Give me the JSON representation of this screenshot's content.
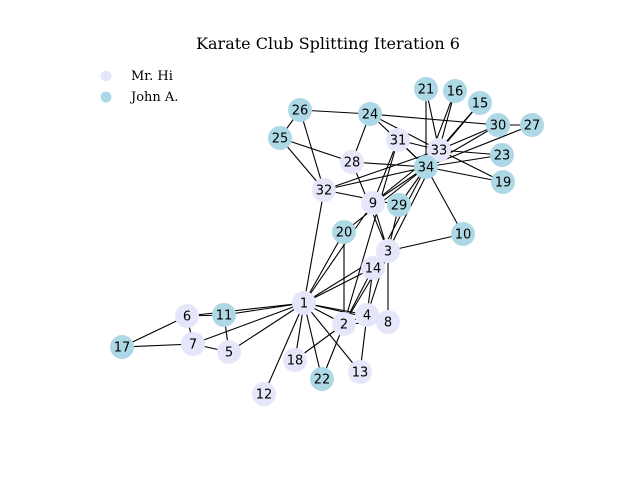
{
  "title": "Karate Club Splitting Iteration 6",
  "colors": {
    "mr_hi": "#e6e6fa",
    "john_a": "#add8e6",
    "edge": "#000000"
  },
  "legend": [
    {
      "label": "Mr. Hi",
      "group": "mr_hi"
    },
    {
      "label": "John A.",
      "group": "john_a"
    }
  ],
  "nodes": [
    {
      "id": "1",
      "group": "mr_hi"
    },
    {
      "id": "2",
      "group": "mr_hi"
    },
    {
      "id": "3",
      "group": "mr_hi"
    },
    {
      "id": "4",
      "group": "mr_hi"
    },
    {
      "id": "5",
      "group": "mr_hi"
    },
    {
      "id": "6",
      "group": "mr_hi"
    },
    {
      "id": "7",
      "group": "mr_hi"
    },
    {
      "id": "8",
      "group": "mr_hi"
    },
    {
      "id": "9",
      "group": "mr_hi"
    },
    {
      "id": "10",
      "group": "john_a"
    },
    {
      "id": "11",
      "group": "john_a"
    },
    {
      "id": "12",
      "group": "mr_hi"
    },
    {
      "id": "13",
      "group": "mr_hi"
    },
    {
      "id": "14",
      "group": "mr_hi"
    },
    {
      "id": "15",
      "group": "john_a"
    },
    {
      "id": "16",
      "group": "john_a"
    },
    {
      "id": "17",
      "group": "john_a"
    },
    {
      "id": "18",
      "group": "mr_hi"
    },
    {
      "id": "19",
      "group": "john_a"
    },
    {
      "id": "20",
      "group": "john_a"
    },
    {
      "id": "21",
      "group": "john_a"
    },
    {
      "id": "22",
      "group": "john_a"
    },
    {
      "id": "23",
      "group": "john_a"
    },
    {
      "id": "24",
      "group": "john_a"
    },
    {
      "id": "25",
      "group": "john_a"
    },
    {
      "id": "26",
      "group": "john_a"
    },
    {
      "id": "27",
      "group": "john_a"
    },
    {
      "id": "28",
      "group": "mr_hi"
    },
    {
      "id": "29",
      "group": "john_a"
    },
    {
      "id": "30",
      "group": "john_a"
    },
    {
      "id": "31",
      "group": "mr_hi"
    },
    {
      "id": "32",
      "group": "mr_hi"
    },
    {
      "id": "33",
      "group": "mr_hi"
    },
    {
      "id": "34",
      "group": "john_a"
    }
  ],
  "edges": [
    [
      "1",
      "2"
    ],
    [
      "1",
      "3"
    ],
    [
      "1",
      "4"
    ],
    [
      "1",
      "5"
    ],
    [
      "1",
      "6"
    ],
    [
      "1",
      "7"
    ],
    [
      "1",
      "8"
    ],
    [
      "1",
      "9"
    ],
    [
      "1",
      "11"
    ],
    [
      "1",
      "12"
    ],
    [
      "1",
      "13"
    ],
    [
      "1",
      "14"
    ],
    [
      "1",
      "18"
    ],
    [
      "1",
      "20"
    ],
    [
      "1",
      "22"
    ],
    [
      "1",
      "32"
    ],
    [
      "2",
      "3"
    ],
    [
      "2",
      "4"
    ],
    [
      "2",
      "8"
    ],
    [
      "2",
      "14"
    ],
    [
      "2",
      "18"
    ],
    [
      "2",
      "20"
    ],
    [
      "2",
      "22"
    ],
    [
      "2",
      "31"
    ],
    [
      "3",
      "4"
    ],
    [
      "3",
      "8"
    ],
    [
      "3",
      "9"
    ],
    [
      "3",
      "10"
    ],
    [
      "3",
      "14"
    ],
    [
      "3",
      "28"
    ],
    [
      "3",
      "29"
    ],
    [
      "3",
      "33"
    ],
    [
      "4",
      "8"
    ],
    [
      "4",
      "13"
    ],
    [
      "4",
      "14"
    ],
    [
      "5",
      "7"
    ],
    [
      "5",
      "11"
    ],
    [
      "6",
      "7"
    ],
    [
      "6",
      "11"
    ],
    [
      "6",
      "17"
    ],
    [
      "7",
      "17"
    ],
    [
      "9",
      "31"
    ],
    [
      "9",
      "33"
    ],
    [
      "9",
      "34"
    ],
    [
      "10",
      "34"
    ],
    [
      "14",
      "34"
    ],
    [
      "15",
      "33"
    ],
    [
      "15",
      "34"
    ],
    [
      "16",
      "33"
    ],
    [
      "16",
      "34"
    ],
    [
      "19",
      "33"
    ],
    [
      "19",
      "34"
    ],
    [
      "20",
      "34"
    ],
    [
      "21",
      "33"
    ],
    [
      "21",
      "34"
    ],
    [
      "23",
      "33"
    ],
    [
      "23",
      "34"
    ],
    [
      "24",
      "26"
    ],
    [
      "24",
      "28"
    ],
    [
      "24",
      "30"
    ],
    [
      "24",
      "33"
    ],
    [
      "24",
      "34"
    ],
    [
      "25",
      "26"
    ],
    [
      "25",
      "28"
    ],
    [
      "25",
      "32"
    ],
    [
      "26",
      "32"
    ],
    [
      "27",
      "30"
    ],
    [
      "27",
      "34"
    ],
    [
      "28",
      "34"
    ],
    [
      "29",
      "32"
    ],
    [
      "29",
      "34"
    ],
    [
      "30",
      "33"
    ],
    [
      "30",
      "34"
    ],
    [
      "31",
      "33"
    ],
    [
      "31",
      "34"
    ],
    [
      "32",
      "33"
    ],
    [
      "32",
      "34"
    ],
    [
      "33",
      "34"
    ]
  ]
}
